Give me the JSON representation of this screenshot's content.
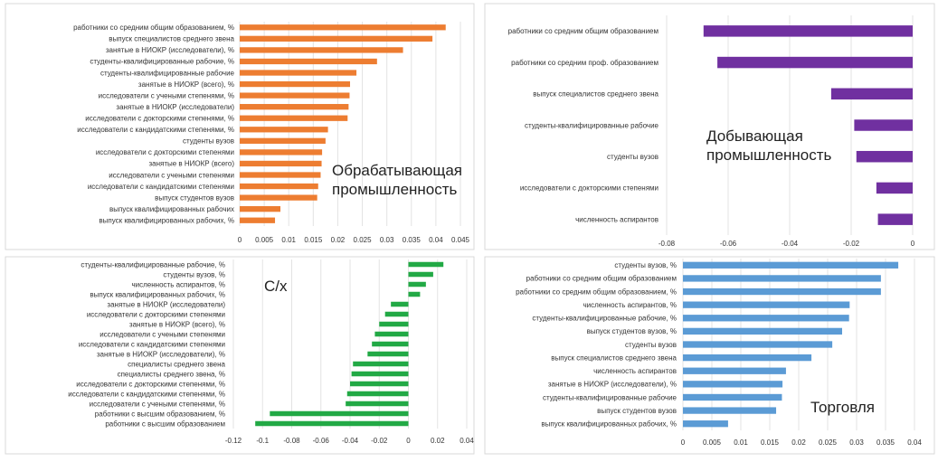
{
  "chart_data": [
    {
      "type": "bar",
      "orientation": "horizontal",
      "title": "Обрабатывающая промышленность",
      "color": "#ED7D31",
      "xlim": [
        0,
        0.045
      ],
      "xticks": [
        "0",
        "0.005",
        "0.01",
        "0.015",
        "0.02",
        "0.025",
        "0.03",
        "0.035",
        "0.04",
        "0.045"
      ],
      "grid": true,
      "categories": [
        "работники со средним общим образованием, %",
        "выпуск специалистов среднего звена",
        "занятые в НИОКР (исследователи), %",
        "студенты-квалифицированные рабочие, %",
        "студенты-квалифицированные рабочие",
        "занятые в НИОКР (всего), %",
        "исследователи с учеными степенями, %",
        "занятые в НИОКР (исследователи)",
        "исследователи с докторскими степенями, %",
        "исследователи с кандидатскими степенями, %",
        "студенты вузов",
        "исследователи с докторскими степенями",
        "занятые в НИОКР (всего)",
        "исследователи с учеными степенями",
        "исследователи с кандидатскими степенями",
        "выпуск студентов вузов",
        "выпуск квалифицированных рабочих",
        "выпуск квалифицированных рабочих, %"
      ],
      "values": [
        0.042,
        0.0393,
        0.0333,
        0.028,
        0.0238,
        0.0225,
        0.0224,
        0.0222,
        0.022,
        0.018,
        0.0175,
        0.0168,
        0.0167,
        0.0165,
        0.016,
        0.0158,
        0.0083,
        0.0072
      ]
    },
    {
      "type": "bar",
      "orientation": "horizontal",
      "title": "Добывающая промышленность",
      "color": "#7030A0",
      "xlim": [
        -0.08,
        0
      ],
      "xticks": [
        "-0.08",
        "-0.06",
        "-0.04",
        "-0.02",
        "0"
      ],
      "grid": true,
      "categories": [
        "работники со средним общим образованием",
        "работники со средним проф. образованием",
        "выпуск специалистов среднего звена",
        "студенты-квалифицированные рабочие",
        "студенты вузов",
        "исследователи с докторскими степенями",
        "численность аспирантов"
      ],
      "values": [
        -0.068,
        -0.0635,
        -0.0265,
        -0.019,
        -0.0183,
        -0.0118,
        -0.0113
      ]
    },
    {
      "type": "bar",
      "orientation": "horizontal",
      "title": "С/х",
      "color": "#22A945",
      "xlim": [
        -0.12,
        0.04
      ],
      "xticks": [
        "-0.12",
        "-0.1",
        "-0.08",
        "-0.06",
        "-0.04",
        "-0.02",
        "0",
        "0.02",
        "0.04"
      ],
      "grid": true,
      "categories": [
        "студенты-квалифицированные рабочие, %",
        "студенты вузов, %",
        "численность аспирантов, %",
        "выпуск квалифицированных рабочих, %",
        "занятые в НИОКР (исследователи)",
        "исследователи с докторскими степенями",
        "занятые в НИОКР (всего), %",
        "исследователи с учеными степенями",
        "исследователи с кандидатскими степенями",
        "занятые в НИОКР (исследователи), %",
        "специалисты среднего звена",
        "специалисты среднего звена, %",
        "исследователи с докторскими степенями, %",
        "исследователи с кандидатскими степенями, %",
        "исследователи с учеными степенями, %",
        "работники с высшим образованием, %",
        "работники с высшим образованием"
      ],
      "values": [
        0.024,
        0.017,
        0.012,
        0.008,
        -0.012,
        -0.016,
        -0.02,
        -0.023,
        -0.025,
        -0.028,
        -0.038,
        -0.039,
        -0.04,
        -0.042,
        -0.043,
        -0.095,
        -0.105
      ]
    },
    {
      "type": "bar",
      "orientation": "horizontal",
      "title": "Торговля",
      "color": "#5B9BD5",
      "xlim": [
        0,
        0.04
      ],
      "xticks": [
        "0",
        "0.005",
        "0.01",
        "0.015",
        "0.02",
        "0.025",
        "0.03",
        "0.035",
        "0.04"
      ],
      "grid": true,
      "categories": [
        "студенты вузов, %",
        "работники со средним общим образованием",
        "работники со средним общим образованием, %",
        "численность аспирантов, %",
        "студенты-квалифицированные рабочие, %",
        "выпуск студентов вузов, %",
        "студенты вузов",
        "выпуск специалистов среднего звена",
        "численность аспирантов",
        "занятые в НИОКР (исследователи), %",
        "студенты-квалифицированные рабочие",
        "выпуск студентов вузов",
        "выпуск квалифицированных рабочих, %"
      ],
      "values": [
        0.0372,
        0.0342,
        0.0342,
        0.0288,
        0.0287,
        0.0275,
        0.0258,
        0.0222,
        0.0178,
        0.0172,
        0.0171,
        0.0161,
        0.0078
      ]
    }
  ]
}
